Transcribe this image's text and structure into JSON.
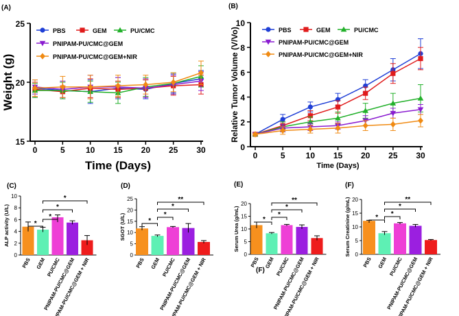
{
  "panel_labels": {
    "A": "(A)",
    "B": "(B)",
    "C": "(C)",
    "D": "(D)",
    "E": "(E)",
    "F": "(F)",
    "F2": "(F)"
  },
  "colors": {
    "PBS": "#1f3fd6",
    "GEM": "#e01b1b",
    "PU/CMC": "#22b02a",
    "PNIPAM-PU/CMC@GEM": "#8a1bd0",
    "PNIPAM-PU/CMC@GEM+NIR": "#f08a12"
  },
  "bar_colors": [
    "#f7901e",
    "#5ef0b4",
    "#ee3fd6",
    "#9b1fe0",
    "#ee1c1c"
  ],
  "chart_data": [
    {
      "id": "A",
      "type": "line",
      "xlabel": "Time (Days)",
      "ylabel": "Weight (g)",
      "x": [
        0,
        5,
        10,
        15,
        20,
        25,
        30
      ],
      "xticks": [
        "0",
        "5",
        "10",
        "15",
        "20",
        "25",
        "30"
      ],
      "ylim": [
        15,
        25
      ],
      "yticks": [
        "15",
        "20",
        "25"
      ],
      "legend": [
        "PBS",
        "GEM",
        "PU/CMC",
        "PNIPAM-PU/CMC@GEM",
        "PNIPAM-PU/CMC@GEM+NIR"
      ],
      "series": [
        {
          "name": "PBS",
          "marker": "circle",
          "values": [
            19.5,
            19.3,
            19.2,
            19.5,
            19.4,
            19.9,
            20.3
          ],
          "err": [
            0.7,
            0.7,
            1.0,
            0.9,
            0.8,
            0.8,
            0.7
          ]
        },
        {
          "name": "GEM",
          "marker": "square",
          "values": [
            19.4,
            19.2,
            19.5,
            19.4,
            19.5,
            19.7,
            19.8
          ],
          "err": [
            0.6,
            0.5,
            0.8,
            0.7,
            0.7,
            0.8,
            0.8
          ]
        },
        {
          "name": "PU/CMC",
          "marker": "triangle",
          "values": [
            19.3,
            19.3,
            19.2,
            19.1,
            19.6,
            19.9,
            20.5
          ],
          "err": [
            0.6,
            0.7,
            0.9,
            0.9,
            0.8,
            0.9,
            0.9
          ]
        },
        {
          "name": "PNIPAM-PU/CMC@GEM",
          "marker": "triangle-down",
          "values": [
            19.6,
            19.4,
            19.6,
            19.6,
            19.5,
            19.8,
            20.1
          ],
          "err": [
            0.6,
            0.7,
            1.0,
            0.8,
            0.8,
            0.8,
            0.8
          ]
        },
        {
          "name": "PNIPAM-PU/CMC@GEM+NIR",
          "marker": "diamond",
          "values": [
            19.5,
            19.6,
            19.6,
            19.7,
            19.8,
            20.0,
            20.8
          ],
          "err": [
            0.7,
            0.9,
            1.0,
            0.9,
            0.8,
            0.8,
            1.0
          ]
        }
      ]
    },
    {
      "id": "B",
      "type": "line",
      "xlabel": "Time (Days)",
      "ylabel": "Relative Tumor Volume (V/Vo)",
      "x": [
        0,
        5,
        10,
        15,
        20,
        25,
        30
      ],
      "xticks": [
        "0",
        "5",
        "10",
        "15",
        "20",
        "25",
        "30"
      ],
      "ylim": [
        0,
        10
      ],
      "yticks": [
        "0",
        "2",
        "4",
        "6",
        "8",
        "10"
      ],
      "legend": [
        "PBS",
        "GEM",
        "PU/CMC",
        "PNIPAM-PU/CMC@GEM",
        "PNIPAM-PU/CMC@GEM+NIR"
      ],
      "series": [
        {
          "name": "PBS",
          "marker": "circle",
          "values": [
            1.0,
            2.2,
            3.2,
            3.8,
            4.9,
            6.2,
            7.5
          ],
          "err": [
            0.1,
            0.4,
            0.4,
            0.5,
            0.5,
            0.9,
            1.2
          ]
        },
        {
          "name": "GEM",
          "marker": "square",
          "values": [
            1.0,
            1.7,
            2.5,
            3.2,
            4.3,
            5.9,
            7.1
          ],
          "err": [
            0.1,
            0.3,
            0.4,
            0.5,
            0.5,
            0.8,
            0.9
          ]
        },
        {
          "name": "PU/CMC",
          "marker": "triangle",
          "values": [
            1.0,
            1.6,
            2.0,
            2.3,
            2.9,
            3.5,
            3.9
          ],
          "err": [
            0.1,
            0.4,
            0.4,
            0.5,
            0.6,
            0.8,
            1.1
          ]
        },
        {
          "name": "PNIPAM-PU/CMC@GEM",
          "marker": "triangle-down",
          "values": [
            1.0,
            1.5,
            1.6,
            1.7,
            2.1,
            2.7,
            3.0
          ],
          "err": [
            0.1,
            0.3,
            0.3,
            0.3,
            0.4,
            0.4,
            0.4
          ]
        },
        {
          "name": "PNIPAM-PU/CMC@GEM+NIR",
          "marker": "diamond",
          "values": [
            1.0,
            1.3,
            1.4,
            1.5,
            1.7,
            1.8,
            2.1
          ],
          "err": [
            0.1,
            0.3,
            0.3,
            0.4,
            0.4,
            0.5,
            0.5
          ]
        }
      ]
    },
    {
      "id": "C",
      "type": "bar",
      "ylabel": "ALP activity (U/L)",
      "categories": [
        "PBS",
        "GEM",
        "PU/CMC",
        "PNIPAM-PU/CMC@GEM",
        "PNIPAM-PU/CMC@GEM + NIR"
      ],
      "values": [
        4.8,
        4.3,
        6.4,
        5.5,
        2.5
      ],
      "err": [
        0.8,
        0.4,
        0.4,
        0.3,
        0.8
      ],
      "ylim": [
        0,
        10
      ],
      "yticks": [
        "0",
        "2",
        "4",
        "6",
        "8",
        "10"
      ],
      "significance": [
        {
          "from": 0,
          "to": 1,
          "label": "*"
        },
        {
          "from": 1,
          "to": 2,
          "label": "*"
        },
        {
          "from": 1,
          "to": 3,
          "label": "*"
        },
        {
          "from": 1,
          "to": 4,
          "label": "*"
        }
      ]
    },
    {
      "id": "D",
      "type": "bar",
      "ylabel": "SGOT (U/L)",
      "categories": [
        "PBS",
        "GEM",
        "PU/CMC",
        "PNIPAM-PU/CMC@GEM",
        "PNIPAM-PU/CMC@GEM + NIR"
      ],
      "values": [
        11.8,
        8.5,
        12.4,
        12.0,
        5.8
      ],
      "err": [
        0.8,
        0.4,
        0.3,
        2.0,
        0.6
      ],
      "ylim": [
        0,
        25
      ],
      "yticks": [
        "0",
        "5",
        "10",
        "15",
        "20",
        "25"
      ],
      "significance": [
        {
          "from": 0,
          "to": 1,
          "label": "*"
        },
        {
          "from": 1,
          "to": 2,
          "label": "*"
        },
        {
          "from": 1,
          "to": 3,
          "label": "*"
        },
        {
          "from": 1,
          "to": 4,
          "label": "**"
        }
      ]
    },
    {
      "id": "E",
      "type": "bar",
      "ylabel": "Serum Urea (g/mL)",
      "categories": [
        "PBS",
        "GEM",
        "PU/CMC",
        "PNIPAM-PU/CMC@GEM",
        "PNIPAM-PU/CMC@GEM + NIR"
      ],
      "values": [
        11.5,
        8.3,
        11.5,
        10.8,
        6.4
      ],
      "err": [
        1.2,
        0.3,
        0.3,
        0.8,
        0.9
      ],
      "ylim": [
        0,
        20
      ],
      "yticks": [
        "0",
        "5",
        "10",
        "15",
        "20"
      ],
      "significance": [
        {
          "from": 0,
          "to": 1,
          "label": "*"
        },
        {
          "from": 1,
          "to": 2,
          "label": "*"
        },
        {
          "from": 1,
          "to": 3,
          "label": "*"
        },
        {
          "from": 1,
          "to": 4,
          "label": "**"
        }
      ]
    },
    {
      "id": "F",
      "type": "bar",
      "ylabel": "Serum Creatinine (g/mL)",
      "categories": [
        "PBS",
        "GEM",
        "PU/CMC",
        "PNIPAM-PU/CMC@GEM",
        "PNIPAM-PU/CMC@GEM + NIR"
      ],
      "values": [
        12.2,
        7.7,
        11.3,
        10.4,
        5.2
      ],
      "err": [
        0.2,
        0.6,
        0.3,
        0.5,
        0.2
      ],
      "ylim": [
        0,
        20
      ],
      "yticks": [
        "0",
        "5",
        "10",
        "15",
        "20"
      ],
      "significance": [
        {
          "from": 0,
          "to": 1,
          "label": "*"
        },
        {
          "from": 1,
          "to": 2,
          "label": "*"
        },
        {
          "from": 1,
          "to": 3,
          "label": "*"
        },
        {
          "from": 1,
          "to": 4,
          "label": "**"
        }
      ]
    }
  ]
}
